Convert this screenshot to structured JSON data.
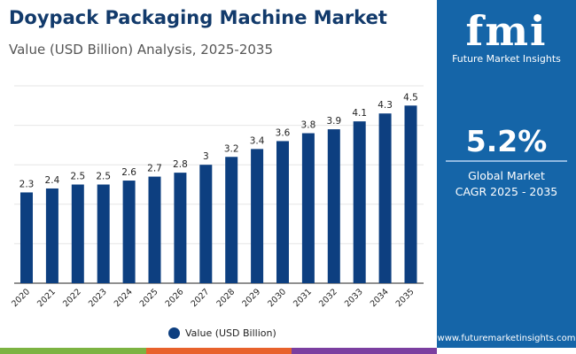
{
  "header": {
    "title": "Doypack Packaging Machine Market",
    "subtitle": "Value (USD Billion) Analysis, 2025-2035"
  },
  "panel": {
    "logo_mark": "fmi",
    "logo_text": "Future Market Insights",
    "cagr_value": "5.2%",
    "cagr_label_line1": "Global Market",
    "cagr_label_line2": "CAGR 2025 - 2035",
    "website": "www.futuremarketinsights.com"
  },
  "colors": {
    "bar": "#0d3f80",
    "panel": "#1565a8",
    "strip": [
      "#7cb342",
      "#e8622c",
      "#7b3fa0"
    ]
  },
  "chart_data": {
    "type": "bar",
    "title": "",
    "xlabel": "",
    "ylabel": "",
    "categories": [
      "2020",
      "2021",
      "2022",
      "2023",
      "2024",
      "2025",
      "2026",
      "2027",
      "2028",
      "2029",
      "2030",
      "2031",
      "2032",
      "2033",
      "2034",
      "2035"
    ],
    "series": [
      {
        "name": "Value (USD Billion)",
        "values": [
          2.3,
          2.4,
          2.5,
          2.5,
          2.6,
          2.7,
          2.8,
          3,
          3.2,
          3.4,
          3.6,
          3.8,
          3.9,
          4.1,
          4.3,
          4.5
        ]
      }
    ],
    "ylim": [
      0,
      5
    ],
    "grid": true,
    "legend": "bottom-center"
  }
}
